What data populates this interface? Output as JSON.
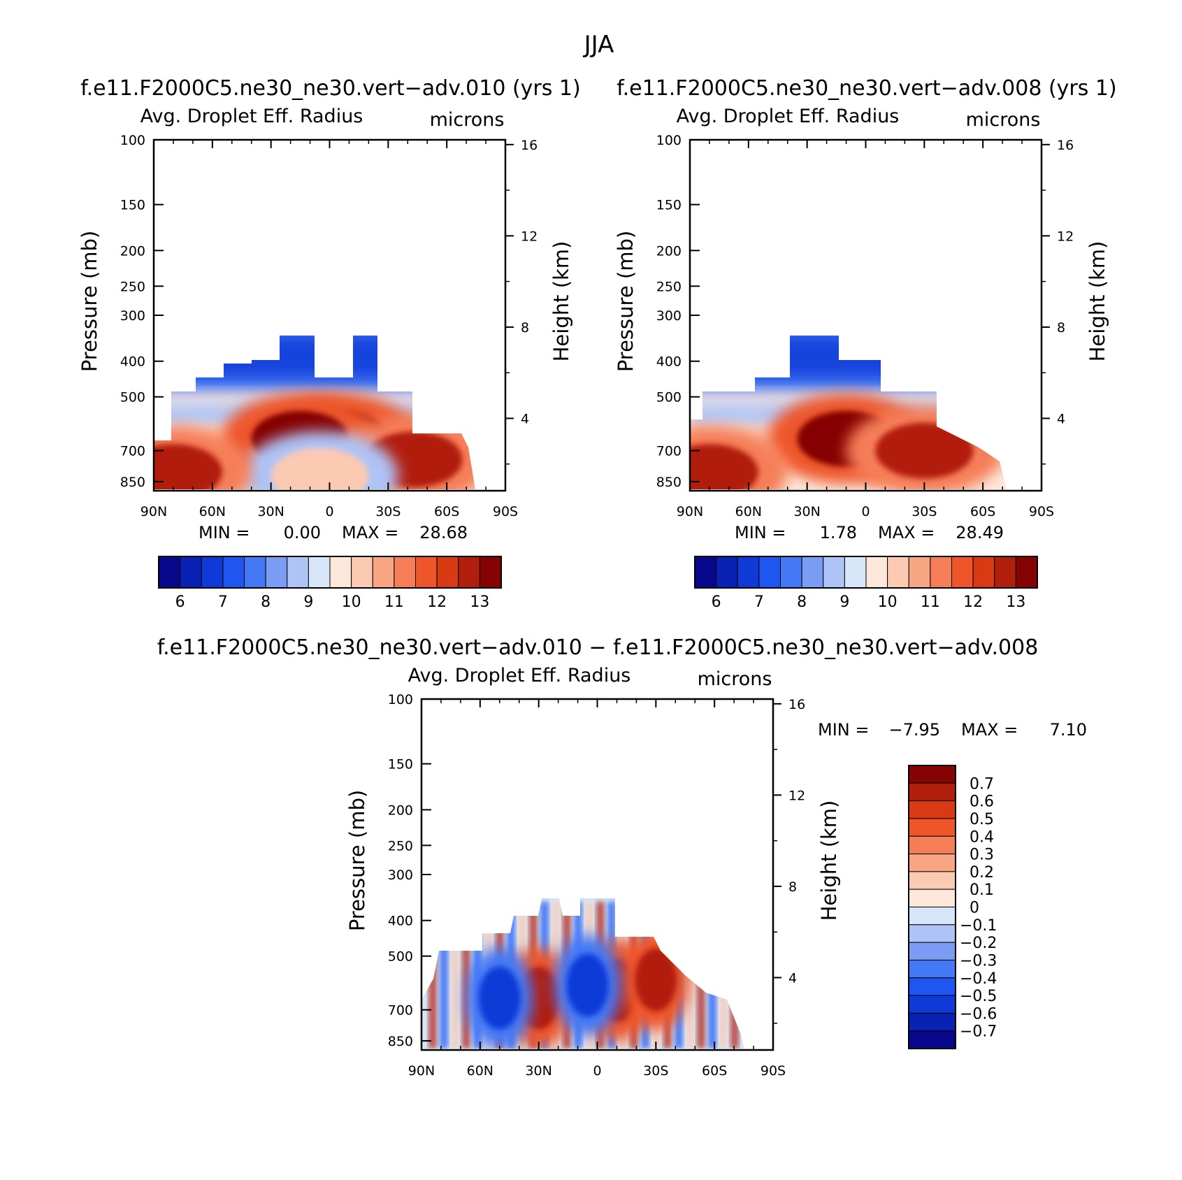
{
  "page_title": "JJA",
  "chart_data": [
    {
      "type": "heatmap",
      "case_title": "f.e11.F2000C5.ne30_ne30.vert−adv.010 (yrs 1)",
      "field_title": "Avg. Droplet Eff. Radius",
      "units": "microns",
      "ylabel": "Pressure (mb)",
      "ylabel_right": "Height (km)",
      "x_ticks": [
        "90N",
        "60N",
        "30N",
        "0",
        "30S",
        "60S",
        "90S"
      ],
      "y_ticks": [
        "100",
        "150",
        "200",
        "250",
        "300",
        "400",
        "500",
        "700",
        "850"
      ],
      "y_ticks_right": [
        "16",
        "12",
        "8",
        "4"
      ],
      "ylim": [
        100,
        900
      ],
      "log_scale": true,
      "min_label": "MIN =",
      "min_value": "0.00",
      "max_label": "MAX =",
      "max_value": "28.68",
      "colorbar_labels": [
        "6",
        "7",
        "8",
        "9",
        "10",
        "11",
        "12",
        "13"
      ],
      "features": [
        {
          "lat": -5,
          "p": 650,
          "value": 13
        },
        {
          "lat": 15,
          "p": 650,
          "value": 13
        },
        {
          "lat": -43,
          "p": 740,
          "value": 12.5
        },
        {
          "lat": 5,
          "p": 820,
          "value": 10
        },
        {
          "lat": 80,
          "p": 800,
          "value": 12.5
        }
      ]
    },
    {
      "type": "heatmap",
      "case_title": "f.e11.F2000C5.ne30_ne30.vert−adv.008 (yrs 1)",
      "field_title": "Avg. Droplet Eff. Radius",
      "units": "microns",
      "ylabel": "Pressure (mb)",
      "ylabel_right": "Height (km)",
      "x_ticks": [
        "90N",
        "60N",
        "30N",
        "0",
        "30S",
        "60S",
        "90S"
      ],
      "y_ticks": [
        "100",
        "150",
        "200",
        "250",
        "300",
        "400",
        "500",
        "700",
        "850"
      ],
      "y_ticks_right": [
        "16",
        "12",
        "8",
        "4"
      ],
      "ylim": [
        100,
        900
      ],
      "log_scale": true,
      "min_label": "MIN =",
      "min_value": "1.78",
      "max_label": "MAX =",
      "max_value": "28.49",
      "colorbar_labels": [
        "6",
        "7",
        "8",
        "9",
        "10",
        "11",
        "12",
        "13"
      ],
      "features": [
        {
          "lat": 10,
          "p": 650,
          "value": 13
        },
        {
          "lat": -30,
          "p": 700,
          "value": 12.5
        },
        {
          "lat": 80,
          "p": 800,
          "value": 12.5
        }
      ]
    },
    {
      "type": "heatmap",
      "case_title": "f.e11.F2000C5.ne30_ne30.vert−adv.010 − f.e11.F2000C5.ne30_ne30.vert−adv.008",
      "field_title": "Avg. Droplet Eff. Radius",
      "units": "microns",
      "ylabel": "Pressure (mb)",
      "ylabel_right": "Height (km)",
      "x_ticks": [
        "90N",
        "60N",
        "30N",
        "0",
        "30S",
        "60S",
        "90S"
      ],
      "y_ticks": [
        "100",
        "150",
        "200",
        "250",
        "300",
        "400",
        "500",
        "700",
        "850"
      ],
      "y_ticks_right": [
        "16",
        "12",
        "8",
        "4"
      ],
      "ylim": [
        100,
        900
      ],
      "log_scale": true,
      "min_label": "MIN =",
      "min_value": "−7.95",
      "max_label": "MAX =",
      "max_value": "7.10",
      "colorbar_labels": [
        "0.7",
        "0.6",
        "0.5",
        "0.4",
        "0.3",
        "0.2",
        "0.1",
        "0",
        "−0.1",
        "−0.2",
        "−0.3",
        "−0.4",
        "−0.5",
        "−0.6",
        "−0.7"
      ],
      "features": [
        {
          "lat": 30,
          "p": 650,
          "value": 0.7
        },
        {
          "lat": -10,
          "p": 620,
          "value": 0.7
        },
        {
          "lat": -30,
          "p": 580,
          "value": 0.7
        },
        {
          "lat": 50,
          "p": 650,
          "value": -0.5
        },
        {
          "lat": 5,
          "p": 600,
          "value": -0.5
        }
      ]
    }
  ],
  "colors": {
    "sequential_16": [
      "#08088c",
      "#0a22b4",
      "#0f3ad8",
      "#1f55f0",
      "#4478f5",
      "#7a9cf5",
      "#aec4f7",
      "#d6e6f8",
      "#fde7db",
      "#fcc9b2",
      "#f8a584",
      "#f57e58",
      "#ee5629",
      "#d83a14",
      "#b21e0c",
      "#850303"
    ],
    "diff_16": [
      "#850303",
      "#b21e0c",
      "#d83a14",
      "#ee5629",
      "#f57e58",
      "#f8a584",
      "#fcc9b2",
      "#fde7db",
      "#d6e6f8",
      "#aec4f7",
      "#7a9cf5",
      "#4478f5",
      "#1f55f0",
      "#0f3ad8",
      "#0a22b4",
      "#08088c"
    ]
  }
}
